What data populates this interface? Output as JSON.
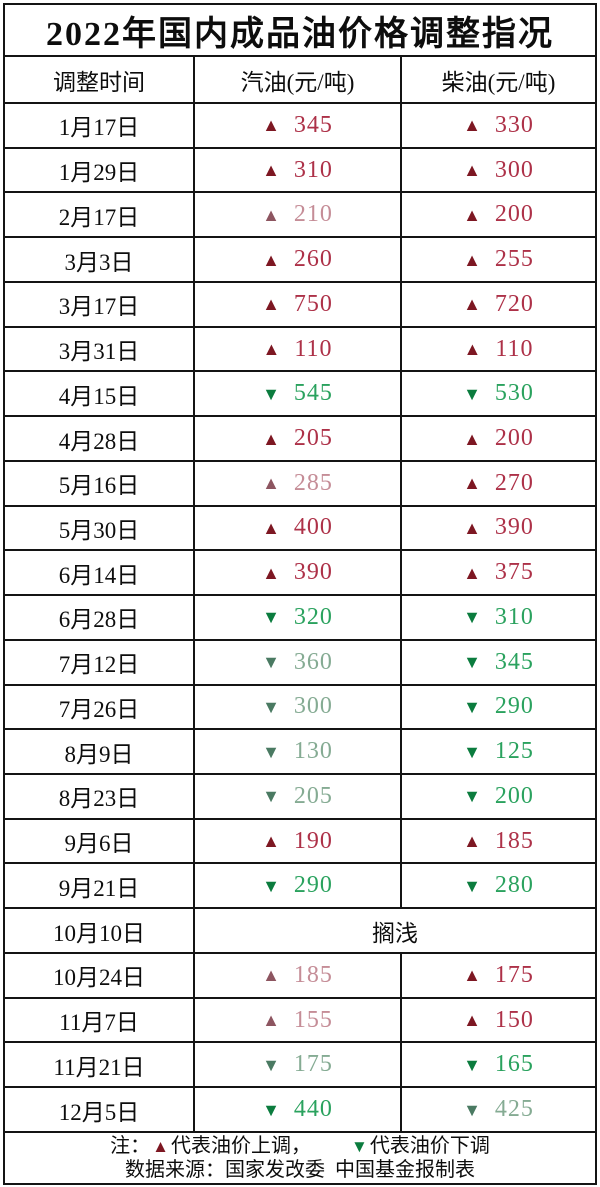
{
  "title": "2022年国内成品油价格调整指况",
  "icons": {
    "up": "▲",
    "down": "▼"
  },
  "colors": {
    "grid": "#141414",
    "up": {
      "triangle": "#7d1722",
      "text": "#ad3148"
    },
    "up_muted": {
      "triangle": "#8d5560",
      "text": "#c58d97"
    },
    "down": {
      "triangle": "#0b7c3e",
      "text": "#2aa25e"
    },
    "down_muted": {
      "triangle": "#4a7a62",
      "text": "#85ab93"
    }
  },
  "chart_data": {
    "type": "table",
    "title": "2022年国内成品油价格调整指况",
    "columns": [
      "调整时间",
      "汽油(元/吨)",
      "柴油(元/吨)"
    ],
    "rows": [
      {
        "date": "1月17日",
        "gasoline": {
          "direction": "up",
          "value": 345
        },
        "diesel": {
          "direction": "up",
          "value": 330
        }
      },
      {
        "date": "1月29日",
        "gasoline": {
          "direction": "up",
          "value": 310
        },
        "diesel": {
          "direction": "up",
          "value": 300
        }
      },
      {
        "date": "2月17日",
        "gasoline": {
          "direction": "up",
          "value": 210,
          "muted": true
        },
        "diesel": {
          "direction": "up",
          "value": 200
        }
      },
      {
        "date": "3月3日",
        "gasoline": {
          "direction": "up",
          "value": 260
        },
        "diesel": {
          "direction": "up",
          "value": 255
        }
      },
      {
        "date": "3月17日",
        "gasoline": {
          "direction": "up",
          "value": 750
        },
        "diesel": {
          "direction": "up",
          "value": 720
        }
      },
      {
        "date": "3月31日",
        "gasoline": {
          "direction": "up",
          "value": 110
        },
        "diesel": {
          "direction": "up",
          "value": 110
        }
      },
      {
        "date": "4月15日",
        "gasoline": {
          "direction": "down",
          "value": 545
        },
        "diesel": {
          "direction": "down",
          "value": 530
        }
      },
      {
        "date": "4月28日",
        "gasoline": {
          "direction": "up",
          "value": 205
        },
        "diesel": {
          "direction": "up",
          "value": 200
        }
      },
      {
        "date": "5月16日",
        "gasoline": {
          "direction": "up",
          "value": 285,
          "muted": true
        },
        "diesel": {
          "direction": "up",
          "value": 270
        }
      },
      {
        "date": "5月30日",
        "gasoline": {
          "direction": "up",
          "value": 400
        },
        "diesel": {
          "direction": "up",
          "value": 390
        }
      },
      {
        "date": "6月14日",
        "gasoline": {
          "direction": "up",
          "value": 390
        },
        "diesel": {
          "direction": "up",
          "value": 375
        }
      },
      {
        "date": "6月28日",
        "gasoline": {
          "direction": "down",
          "value": 320
        },
        "diesel": {
          "direction": "down",
          "value": 310
        }
      },
      {
        "date": "7月12日",
        "gasoline": {
          "direction": "down",
          "value": 360,
          "muted": true
        },
        "diesel": {
          "direction": "down",
          "value": 345
        }
      },
      {
        "date": "7月26日",
        "gasoline": {
          "direction": "down",
          "value": 300,
          "muted": true
        },
        "diesel": {
          "direction": "down",
          "value": 290
        }
      },
      {
        "date": "8月9日",
        "gasoline": {
          "direction": "down",
          "value": 130,
          "muted": true
        },
        "diesel": {
          "direction": "down",
          "value": 125
        }
      },
      {
        "date": "8月23日",
        "gasoline": {
          "direction": "down",
          "value": 205,
          "muted": true
        },
        "diesel": {
          "direction": "down",
          "value": 200
        }
      },
      {
        "date": "9月6日",
        "gasoline": {
          "direction": "up",
          "value": 190
        },
        "diesel": {
          "direction": "up",
          "value": 185
        }
      },
      {
        "date": "9月21日",
        "gasoline": {
          "direction": "down",
          "value": 290
        },
        "diesel": {
          "direction": "down",
          "value": 280
        }
      },
      {
        "date": "10月10日",
        "merged_text": "搁浅"
      },
      {
        "date": "10月24日",
        "gasoline": {
          "direction": "up",
          "value": 185,
          "muted": true
        },
        "diesel": {
          "direction": "up",
          "value": 175
        }
      },
      {
        "date": "11月7日",
        "gasoline": {
          "direction": "up",
          "value": 155,
          "muted": true
        },
        "diesel": {
          "direction": "up",
          "value": 150
        }
      },
      {
        "date": "11月21日",
        "gasoline": {
          "direction": "down",
          "value": 175,
          "muted": true
        },
        "diesel": {
          "direction": "down",
          "value": 165
        }
      },
      {
        "date": "12月5日",
        "gasoline": {
          "direction": "down",
          "value": 440
        },
        "diesel": {
          "direction": "down",
          "value": 425,
          "muted": true
        }
      }
    ]
  },
  "footer": {
    "note_prefix": "注：",
    "up_note": "代表油价上调，",
    "down_note": "代表油价下调",
    "source": "数据来源：国家发改委  中国基金报制表"
  }
}
